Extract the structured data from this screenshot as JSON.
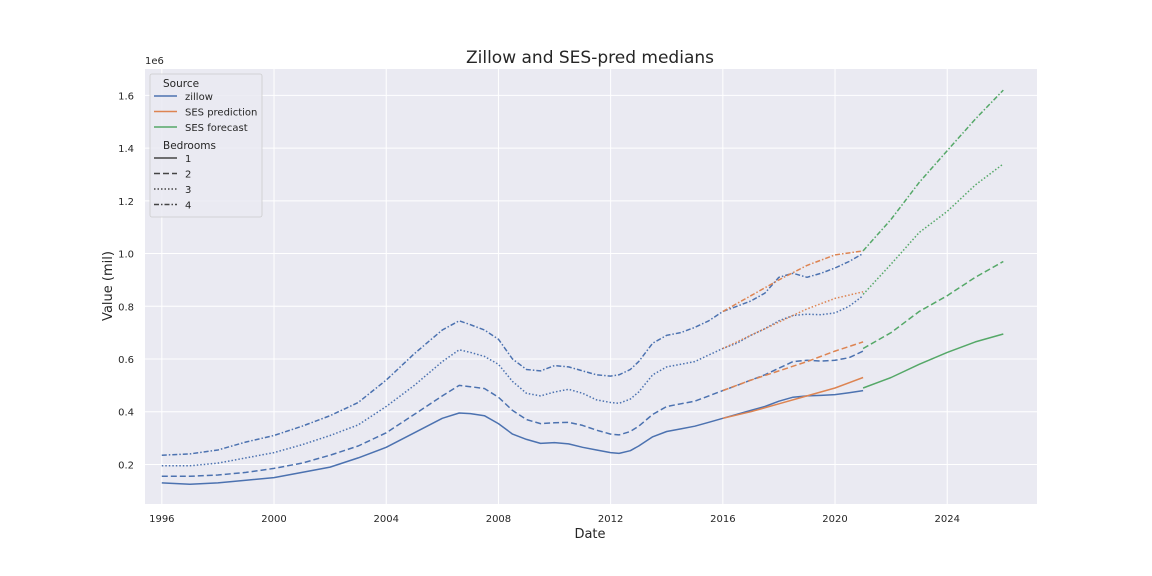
{
  "chart_data": {
    "type": "line",
    "title": "Zillow and SES-pred medians",
    "xlabel": "Date",
    "ylabel": "Value (mil)",
    "y_offset_label": "1e6",
    "xlim": [
      1995.4,
      2027.2
    ],
    "ylim": [
      50000,
      1700000
    ],
    "x_ticks": [
      1996,
      2000,
      2004,
      2008,
      2012,
      2016,
      2020,
      2024
    ],
    "y_ticks": [
      200000,
      400000,
      600000,
      800000,
      1000000,
      1200000,
      1400000,
      1600000
    ],
    "y_tick_labels": [
      "0.2",
      "0.4",
      "0.6",
      "0.8",
      "1.0",
      "1.2",
      "1.4",
      "1.6"
    ],
    "grid": true,
    "background": "#eaeaf2",
    "legend": {
      "placement": "top-left",
      "source_title": "Source",
      "bedrooms_title": "Bedrooms",
      "sources": [
        {
          "name": "zillow",
          "color": "#4c72b0"
        },
        {
          "name": "SES prediction",
          "color": "#dd8452"
        },
        {
          "name": "SES forecast",
          "color": "#55a868"
        }
      ],
      "bedrooms": [
        {
          "name": "1",
          "dash": "solid"
        },
        {
          "name": "2",
          "dash": "dashed"
        },
        {
          "name": "3",
          "dash": "dotted"
        },
        {
          "name": "4",
          "dash": "dashdot"
        }
      ]
    },
    "series": [
      {
        "source": "zillow",
        "bedrooms": "1",
        "color": "#4c72b0",
        "dash": "solid",
        "x": [
          1996.0,
          1997.0,
          1998.0,
          1999.0,
          2000.0,
          2001.0,
          2002.0,
          2003.0,
          2004.0,
          2005.0,
          2006.0,
          2006.6,
          2007.0,
          2007.5,
          2008.0,
          2008.5,
          2009.0,
          2009.5,
          2010.0,
          2010.5,
          2011.0,
          2011.5,
          2012.0,
          2012.3,
          2012.7,
          2013.0,
          2013.5,
          2014.0,
          2014.5,
          2015.0,
          2015.5,
          2016.0,
          2016.5,
          2017.0,
          2017.5,
          2018.0,
          2018.5,
          2019.0,
          2019.5,
          2020.0,
          2020.5,
          2021.0
        ],
        "y": [
          130000,
          125000,
          130000,
          140000,
          150000,
          170000,
          190000,
          225000,
          265000,
          320000,
          375000,
          395000,
          393000,
          385000,
          355000,
          315000,
          295000,
          280000,
          283000,
          278000,
          265000,
          255000,
          245000,
          242000,
          252000,
          270000,
          305000,
          325000,
          335000,
          345000,
          360000,
          375000,
          390000,
          405000,
          420000,
          440000,
          455000,
          460000,
          462000,
          465000,
          472000,
          480000
        ]
      },
      {
        "source": "zillow",
        "bedrooms": "2",
        "color": "#4c72b0",
        "dash": "dashed",
        "x": [
          1996.0,
          1997.0,
          1998.0,
          1999.0,
          2000.0,
          2001.0,
          2002.0,
          2003.0,
          2004.0,
          2005.0,
          2006.0,
          2006.6,
          2007.0,
          2007.5,
          2008.0,
          2008.5,
          2009.0,
          2009.5,
          2010.0,
          2010.5,
          2011.0,
          2011.5,
          2012.0,
          2012.3,
          2012.7,
          2013.0,
          2013.5,
          2014.0,
          2014.5,
          2015.0,
          2015.5,
          2016.0,
          2016.5,
          2017.0,
          2017.5,
          2018.0,
          2018.5,
          2019.0,
          2019.5,
          2020.0,
          2020.5,
          2021.0
        ],
        "y": [
          155000,
          155000,
          160000,
          170000,
          185000,
          205000,
          235000,
          270000,
          320000,
          390000,
          460000,
          500000,
          495000,
          488000,
          455000,
          405000,
          370000,
          355000,
          358000,
          360000,
          348000,
          330000,
          315000,
          312000,
          325000,
          345000,
          390000,
          420000,
          430000,
          440000,
          460000,
          480000,
          500000,
          520000,
          540000,
          565000,
          590000,
          595000,
          592000,
          595000,
          605000,
          630000
        ]
      },
      {
        "source": "zillow",
        "bedrooms": "3",
        "color": "#4c72b0",
        "dash": "dotted",
        "x": [
          1996.0,
          1997.0,
          1998.0,
          1999.0,
          2000.0,
          2001.0,
          2002.0,
          2003.0,
          2004.0,
          2005.0,
          2006.0,
          2006.6,
          2007.0,
          2007.5,
          2008.0,
          2008.5,
          2009.0,
          2009.5,
          2010.0,
          2010.5,
          2011.0,
          2011.5,
          2012.0,
          2012.3,
          2012.7,
          2013.0,
          2013.5,
          2014.0,
          2014.5,
          2015.0,
          2015.5,
          2016.0,
          2016.5,
          2017.0,
          2017.5,
          2018.0,
          2018.5,
          2019.0,
          2019.5,
          2020.0,
          2020.5,
          2021.0
        ],
        "y": [
          195000,
          195000,
          205000,
          225000,
          245000,
          275000,
          310000,
          350000,
          420000,
          500000,
          590000,
          635000,
          625000,
          610000,
          580000,
          515000,
          470000,
          460000,
          475000,
          485000,
          470000,
          445000,
          435000,
          432000,
          448000,
          475000,
          540000,
          570000,
          580000,
          590000,
          615000,
          640000,
          660000,
          690000,
          715000,
          745000,
          765000,
          770000,
          768000,
          775000,
          800000,
          840000
        ]
      },
      {
        "source": "zillow",
        "bedrooms": "4",
        "color": "#4c72b0",
        "dash": "dashdot",
        "x": [
          1996.0,
          1997.0,
          1998.0,
          1999.0,
          2000.0,
          2001.0,
          2002.0,
          2003.0,
          2004.0,
          2005.0,
          2006.0,
          2006.6,
          2007.0,
          2007.5,
          2008.0,
          2008.5,
          2009.0,
          2009.5,
          2010.0,
          2010.5,
          2011.0,
          2011.5,
          2012.0,
          2012.3,
          2012.7,
          2013.0,
          2013.5,
          2014.0,
          2014.5,
          2015.0,
          2015.5,
          2016.0,
          2016.5,
          2017.0,
          2017.5,
          2018.0,
          2018.5,
          2019.0,
          2019.5,
          2020.0,
          2020.5,
          2021.0
        ],
        "y": [
          235000,
          240000,
          255000,
          285000,
          310000,
          345000,
          385000,
          435000,
          520000,
          620000,
          710000,
          745000,
          730000,
          710000,
          675000,
          600000,
          560000,
          555000,
          575000,
          570000,
          555000,
          540000,
          535000,
          540000,
          560000,
          590000,
          660000,
          690000,
          700000,
          720000,
          745000,
          780000,
          800000,
          820000,
          850000,
          910000,
          925000,
          910000,
          925000,
          945000,
          970000,
          1000000
        ]
      },
      {
        "source": "SES prediction",
        "bedrooms": "1",
        "color": "#dd8452",
        "dash": "solid",
        "x": [
          2016.0,
          2017.0,
          2018.0,
          2019.0,
          2020.0,
          2021.0
        ],
        "y": [
          375000,
          400000,
          430000,
          460000,
          490000,
          530000
        ]
      },
      {
        "source": "SES prediction",
        "bedrooms": "2",
        "color": "#dd8452",
        "dash": "dashed",
        "x": [
          2016.0,
          2017.0,
          2018.0,
          2019.0,
          2020.0,
          2021.0
        ],
        "y": [
          480000,
          520000,
          555000,
          590000,
          630000,
          665000
        ]
      },
      {
        "source": "SES prediction",
        "bedrooms": "3",
        "color": "#dd8452",
        "dash": "dotted",
        "x": [
          2016.0,
          2017.0,
          2018.0,
          2019.0,
          2020.0,
          2021.0
        ],
        "y": [
          640000,
          690000,
          740000,
          790000,
          830000,
          855000
        ]
      },
      {
        "source": "SES prediction",
        "bedrooms": "4",
        "color": "#dd8452",
        "dash": "dashdot",
        "x": [
          2016.0,
          2017.0,
          2018.0,
          2019.0,
          2020.0,
          2021.0
        ],
        "y": [
          780000,
          840000,
          900000,
          955000,
          995000,
          1010000
        ]
      },
      {
        "source": "SES forecast",
        "bedrooms": "1",
        "color": "#55a868",
        "dash": "solid",
        "x": [
          2021.0,
          2022.0,
          2023.0,
          2024.0,
          2025.0,
          2026.0
        ],
        "y": [
          490000,
          530000,
          580000,
          625000,
          665000,
          695000
        ]
      },
      {
        "source": "SES forecast",
        "bedrooms": "2",
        "color": "#55a868",
        "dash": "dashed",
        "x": [
          2021.0,
          2022.0,
          2023.0,
          2024.0,
          2025.0,
          2026.0
        ],
        "y": [
          640000,
          700000,
          780000,
          840000,
          910000,
          970000
        ]
      },
      {
        "source": "SES forecast",
        "bedrooms": "3",
        "color": "#55a868",
        "dash": "dotted",
        "x": [
          2021.0,
          2022.0,
          2023.0,
          2024.0,
          2025.0,
          2026.0
        ],
        "y": [
          845000,
          960000,
          1080000,
          1160000,
          1260000,
          1340000
        ]
      },
      {
        "source": "SES forecast",
        "bedrooms": "4",
        "color": "#55a868",
        "dash": "dashdot",
        "x": [
          2021.0,
          2022.0,
          2023.0,
          2024.0,
          2025.0,
          2026.0
        ],
        "y": [
          1010000,
          1130000,
          1270000,
          1390000,
          1510000,
          1620000
        ]
      }
    ]
  }
}
